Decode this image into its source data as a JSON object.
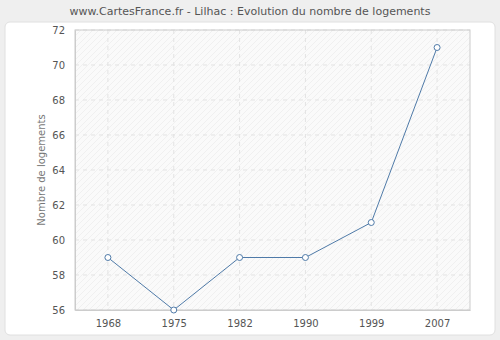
{
  "chart_data": {
    "type": "line",
    "title": "www.CartesFrance.fr - Lilhac : Evolution du nombre de logements",
    "y_label": "Nombre de logements",
    "categories": [
      "1968",
      "1975",
      "1982",
      "1990",
      "1999",
      "2007"
    ],
    "values": [
      59,
      56,
      59,
      59,
      61,
      71
    ],
    "color": "#4f7aa8",
    "marker": "circle",
    "ylim": [
      56,
      72
    ],
    "yticks": [
      56,
      58,
      60,
      62,
      64,
      66,
      68,
      70,
      72
    ],
    "grid": true
  }
}
